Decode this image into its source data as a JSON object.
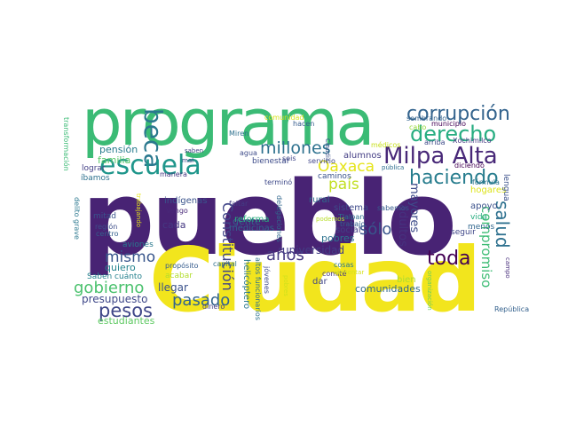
{
  "words": [
    {
      "text": "pueblo",
      "color": "#482374"
    },
    {
      "text": "Ciudad",
      "color": "#F2E51D"
    },
    {
      "text": "programa",
      "color": "#3BBB75"
    },
    {
      "text": "escuela",
      "color": "#1F968B"
    },
    {
      "text": "beca",
      "color": "#2A788E"
    },
    {
      "text": "Milpa Alta",
      "color": "#482878"
    },
    {
      "text": "corrupción",
      "color": "#33638D"
    },
    {
      "text": "derecho",
      "color": "#27AD81"
    },
    {
      "text": "haciendo",
      "color": "#287D8E"
    },
    {
      "text": "millones",
      "color": "#2D718E"
    },
    {
      "text": "país",
      "color": "#C2DF23"
    },
    {
      "text": "Oaxaca",
      "color": "#E5E419"
    },
    {
      "text": "salud",
      "color": "#2D708E"
    },
    {
      "text": "compromiso",
      "color": "#3DBC74"
    },
    {
      "text": "sólo",
      "color": "#39558C"
    },
    {
      "text": "toda",
      "color": "#440154"
    },
    {
      "text": "años",
      "color": "#453781"
    },
    {
      "text": "mismo",
      "color": "#39568C"
    },
    {
      "text": "pesos",
      "color": "#3F4788"
    },
    {
      "text": "gobierno",
      "color": "#4AC16D"
    },
    {
      "text": "pasado",
      "color": "#32648E"
    },
    {
      "text": "Constitución",
      "color": "#404588"
    },
    {
      "text": "adultos",
      "color": "#46327E"
    },
    {
      "text": "mayores",
      "color": "#3E4C8A"
    },
    {
      "text": "presupuesto",
      "color": "#3F4889"
    },
    {
      "text": "universidad",
      "color": "#433E85"
    },
    {
      "text": "comunidades",
      "color": "#30688E"
    },
    {
      "text": "familia",
      "color": "#56C667"
    },
    {
      "text": "pensión",
      "color": "#287C8E"
    },
    {
      "text": "indígenas",
      "color": "#3A548C"
    },
    {
      "text": "gente",
      "color": "#33638D"
    },
    {
      "text": "reforma",
      "color": "#29AF7F"
    },
    {
      "text": "medicinas",
      "color": "#33628D"
    },
    {
      "text": "cada",
      "color": "#453882"
    },
    {
      "text": "quiero",
      "color": "#25848E"
    },
    {
      "text": "aviones",
      "color": "#29798E"
    },
    {
      "text": "llegar",
      "color": "#3B528B"
    },
    {
      "text": "estudiantes",
      "color": "#5EC962"
    },
    {
      "text": "Saben cuánto",
      "color": "#26828E"
    },
    {
      "text": "pobres",
      "color": "#2C728E"
    },
    {
      "text": "social",
      "color": "#423F85"
    },
    {
      "text": "sistema",
      "color": "#3E4A89"
    },
    {
      "text": "rural",
      "color": "#2F6B8E"
    },
    {
      "text": "alumnos",
      "color": "#433D84"
    },
    {
      "text": "bienestar",
      "color": "#3E4C8A"
    },
    {
      "text": "caminos",
      "color": "#3A538B"
    },
    {
      "text": "hogares",
      "color": "#DCE319"
    },
    {
      "text": "apoyo",
      "color": "#3B518B"
    },
    {
      "text": "vida",
      "color": "#28AE80"
    },
    {
      "text": "menos",
      "color": "#31678E"
    },
    {
      "text": "seguir",
      "color": "#3F4788"
    },
    {
      "text": "lengua",
      "color": "#3B528B"
    },
    {
      "text": "fórmula",
      "color": "#2B748E"
    },
    {
      "text": "dar",
      "color": "#404688"
    },
    {
      "text": "bien",
      "color": "#AADC32"
    },
    {
      "text": "cosas",
      "color": "#2A778E"
    },
    {
      "text": "acabar",
      "color": "#B2DD2D"
    },
    {
      "text": "propósito",
      "color": "#365C8D"
    },
    {
      "text": "capital",
      "color": "#2E6F8E"
    },
    {
      "text": "centro",
      "color": "#34618D"
    },
    {
      "text": "mitad",
      "color": "#3A548C"
    },
    {
      "text": "región",
      "color": "#3D4E8A"
    },
    {
      "text": "Tlalpan",
      "color": "#2C718E"
    },
    {
      "text": "trabajo",
      "color": "#33628D"
    },
    {
      "text": "comité",
      "color": "#453882"
    },
    {
      "text": "trabajando",
      "color": "#E5E419"
    },
    {
      "text": "delito grave",
      "color": "#2A778E"
    },
    {
      "text": "transformación",
      "color": "#3BBB75"
    },
    {
      "text": "íbamos",
      "color": "#2D718E"
    },
    {
      "text": "lograr",
      "color": "#423F85"
    },
    {
      "text": "mal",
      "color": "#3F4889"
    },
    {
      "text": "Vengo",
      "color": "#482878"
    },
    {
      "text": "faltar",
      "color": "#433D84"
    },
    {
      "text": "manera",
      "color": "#453781"
    },
    {
      "text": "Miren",
      "color": "#2D708E"
    },
    {
      "text": "agua",
      "color": "#3E4C8A"
    },
    {
      "text": "seis",
      "color": "#3F4788"
    },
    {
      "text": "hacen",
      "color": "#365C8D"
    },
    {
      "text": "comunidad",
      "color": "#D8E219"
    },
    {
      "text": "servicio",
      "color": "#404588"
    },
    {
      "text": "Claudia",
      "color": "#3B528B"
    },
    {
      "text": "terminó",
      "color": "#3E4989"
    },
    {
      "text": "delegaciones",
      "color": "#31678E"
    },
    {
      "text": "podemos",
      "color": "#B8DE29"
    },
    {
      "text": "aumentar",
      "color": "#D5E21A"
    },
    {
      "text": "sabemos",
      "color": "#365D8D"
    },
    {
      "text": "altos funcionarios",
      "color": "#2C728E"
    },
    {
      "text": "helicóptero",
      "color": "#2A788E"
    },
    {
      "text": "jóvenes",
      "color": "#3E4A89"
    },
    {
      "text": "pobres",
      "color": "#CFE11C"
    },
    {
      "text": "dinero",
      "color": "#433E85"
    },
    {
      "text": "saben",
      "color": "#423F85"
    },
    {
      "text": "sembrando",
      "color": "#33638D"
    },
    {
      "text": "municipio",
      "color": "#440154"
    },
    {
      "text": "cabo",
      "color": "#98D83E"
    },
    {
      "text": "arriba",
      "color": "#3E4A89"
    },
    {
      "text": "Xochimilco",
      "color": "#453882"
    },
    {
      "text": "diciendo",
      "color": "#440154"
    },
    {
      "text": "médicos",
      "color": "#C8E020"
    },
    {
      "text": "pública",
      "color": "#2E6E8E"
    },
    {
      "text": "organización",
      "color": "#6ECE58"
    },
    {
      "text": "República",
      "color": "#34618D"
    },
    {
      "text": "campo",
      "color": "#472D7B"
    }
  ]
}
